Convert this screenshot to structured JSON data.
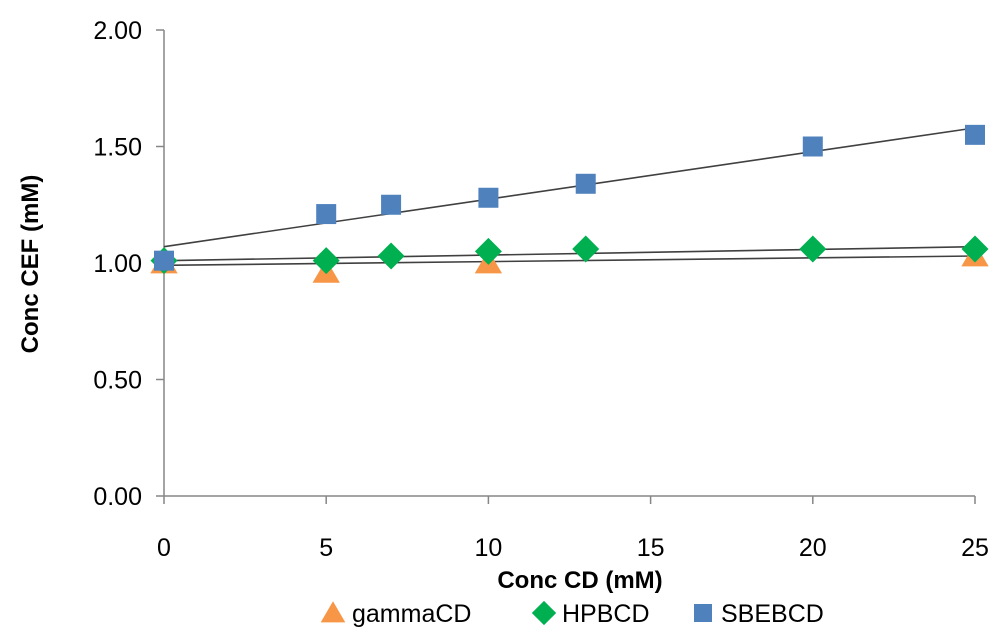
{
  "chart_data": {
    "type": "scatter",
    "title": "",
    "xlabel": "Conc CD (mM)",
    "ylabel": "Conc CEF (mM)",
    "xlim": [
      0,
      25
    ],
    "ylim": [
      0,
      2
    ],
    "x_ticks": [
      "0",
      "5",
      "10",
      "15",
      "20",
      "25"
    ],
    "x_tick_values": [
      0,
      5,
      10,
      15,
      20,
      25
    ],
    "y_ticks": [
      "0.00",
      "0.50",
      "1.00",
      "1.50",
      "2.00"
    ],
    "y_tick_values": [
      0,
      0.5,
      1,
      1.5,
      2
    ],
    "grid": false,
    "legend_position": "bottom",
    "series": [
      {
        "name": "gammaCD",
        "marker": "triangle",
        "color": "#F79646",
        "x": [
          0,
          5,
          10,
          25
        ],
        "y": [
          1.0,
          0.96,
          1.0,
          1.03
        ],
        "trendline": [
          [
            0,
            0.99
          ],
          [
            25,
            1.03
          ]
        ]
      },
      {
        "name": "HPBCD",
        "marker": "diamond",
        "color": "#00B050",
        "x": [
          0,
          5,
          7,
          10,
          13,
          20,
          25
        ],
        "y": [
          1.01,
          1.01,
          1.03,
          1.05,
          1.06,
          1.06,
          1.06
        ],
        "trendline": [
          [
            0,
            1.01
          ],
          [
            25,
            1.07
          ]
        ]
      },
      {
        "name": "SBEBCD",
        "marker": "square",
        "color": "#4F81BD",
        "x": [
          0,
          5,
          7,
          10,
          13,
          20,
          25
        ],
        "y": [
          1.01,
          1.21,
          1.25,
          1.28,
          1.34,
          1.5,
          1.55
        ],
        "trendline": [
          [
            0,
            1.07
          ],
          [
            25,
            1.58
          ]
        ]
      }
    ]
  }
}
